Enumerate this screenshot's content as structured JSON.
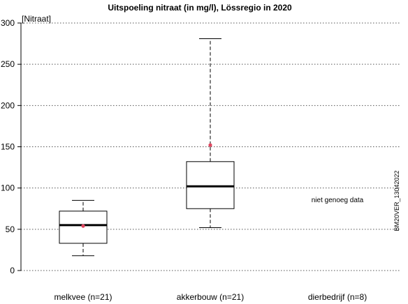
{
  "chart_data": {
    "type": "boxplot",
    "title": "Uitspoeling nitraat (in mg/l), Lössregio in 2020",
    "ylabel": "[Nitraat]",
    "ylim": [
      0,
      300
    ],
    "yticks": [
      0,
      50,
      100,
      150,
      200,
      250,
      300
    ],
    "grid": "horizontal dotted",
    "categories": [
      "melkvee (n=21)",
      "akkerbouw (n=21)",
      "dierbedrijf (n=8)"
    ],
    "boxes": [
      {
        "category": "melkvee (n=21)",
        "whisker_low": 18,
        "q1": 33,
        "median": 55,
        "q3": 72,
        "whisker_high": 85,
        "mean": 54
      },
      {
        "category": "akkerbouw (n=21)",
        "whisker_low": 52,
        "q1": 75,
        "median": 102,
        "q3": 132,
        "whisker_high": 281,
        "mean": 152
      },
      {
        "category": "dierbedrijf (n=8)",
        "no_data_text": "niet genoeg data",
        "no_data_value": 86
      }
    ],
    "mean_color": "#e0455e",
    "side_code": "BM20VER_13042022"
  }
}
